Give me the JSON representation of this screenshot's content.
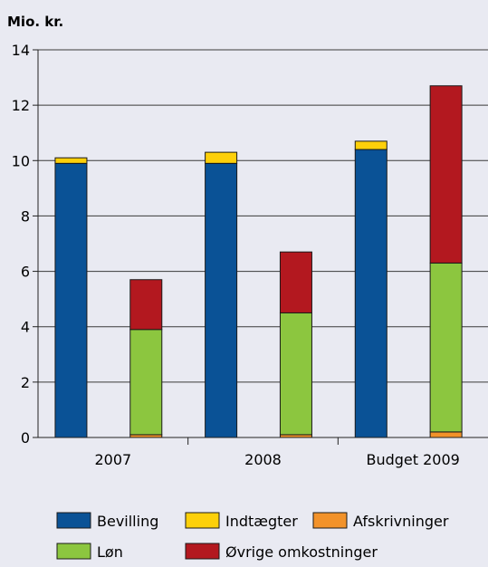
{
  "chart_data": {
    "type": "bar",
    "stacked": true,
    "ylabel": "Mio. kr.",
    "ylim": [
      0,
      14
    ],
    "yticks": [
      0,
      2,
      4,
      6,
      8,
      10,
      12,
      14
    ],
    "grid": true,
    "legend_position": "bottom",
    "groups": [
      "2007",
      "2008",
      "Budget 2009"
    ],
    "stacks": [
      {
        "group": "2007",
        "kind": "income",
        "segments": [
          {
            "series": "Bevilling",
            "value": 9.9
          },
          {
            "series": "Indtægter",
            "value": 0.2
          }
        ]
      },
      {
        "group": "2007",
        "kind": "expenses",
        "segments": [
          {
            "series": "Afskrivninger",
            "value": 0.1
          },
          {
            "series": "Løn",
            "value": 3.8
          },
          {
            "series": "Øvrige omkostninger",
            "value": 1.8
          }
        ]
      },
      {
        "group": "2008",
        "kind": "income",
        "segments": [
          {
            "series": "Bevilling",
            "value": 9.9
          },
          {
            "series": "Indtægter",
            "value": 0.4
          }
        ]
      },
      {
        "group": "2008",
        "kind": "expenses",
        "segments": [
          {
            "series": "Afskrivninger",
            "value": 0.1
          },
          {
            "series": "Løn",
            "value": 4.4
          },
          {
            "series": "Øvrige omkostninger",
            "value": 2.2
          }
        ]
      },
      {
        "group": "Budget 2009",
        "kind": "income",
        "segments": [
          {
            "series": "Bevilling",
            "value": 10.4
          },
          {
            "series": "Indtægter",
            "value": 0.3
          }
        ]
      },
      {
        "group": "Budget 2009",
        "kind": "expenses",
        "segments": [
          {
            "series": "Afskrivninger",
            "value": 0.2
          },
          {
            "series": "Løn",
            "value": 6.1
          },
          {
            "series": "Øvrige omkostninger",
            "value": 6.4
          }
        ]
      }
    ],
    "legend": [
      {
        "name": "Bevilling",
        "color": "#0a5296"
      },
      {
        "name": "Indtægter",
        "color": "#fdd00a"
      },
      {
        "name": "Afskrivninger",
        "color": "#f2922a"
      },
      {
        "name": "Løn",
        "color": "#8cc63f"
      },
      {
        "name": "Øvrige omkostninger",
        "color": "#b3181f"
      }
    ]
  }
}
